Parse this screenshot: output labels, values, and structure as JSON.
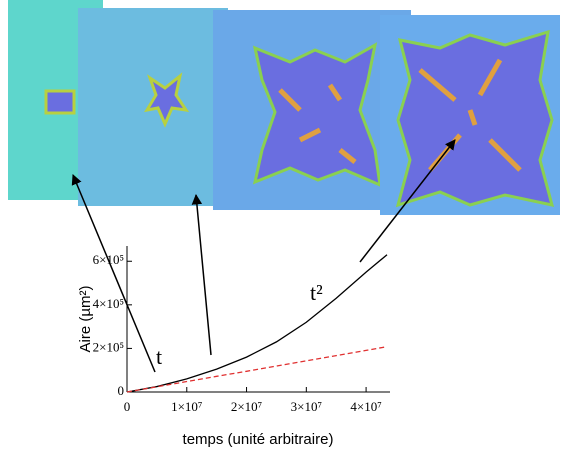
{
  "chart_data": {
    "type": "line",
    "x_label": "temps (unité arbitraire)",
    "y_label": "Aire (µm²)",
    "xlim": [
      0,
      44000000
    ],
    "ylim": [
      0,
      670000
    ],
    "xticks": [
      0,
      {
        "value": 10000000,
        "label": "1×10⁷"
      },
      {
        "value": 20000000,
        "label": "2×10⁷"
      },
      {
        "value": 30000000,
        "label": "3×10⁷"
      },
      {
        "value": 40000000,
        "label": "4×10⁷"
      }
    ],
    "yticks": [
      0,
      {
        "value": 200000,
        "label": "2×10⁵"
      },
      {
        "value": 400000,
        "label": "4×10⁵"
      },
      {
        "value": 600000,
        "label": "6×10⁵"
      }
    ],
    "x": [
      0,
      5000000,
      10000000,
      15000000,
      20000000,
      25000000,
      30000000,
      35000000,
      40000000,
      43500000
    ],
    "series": [
      {
        "color": "#000000",
        "dashed": false,
        "values": [
          0,
          25000,
          60000,
          105000,
          160000,
          230000,
          320000,
          430000,
          550000,
          630000
        ]
      },
      {
        "color": "#e03030",
        "dashed": true,
        "values": [
          0,
          24000,
          48000,
          72000,
          95000,
          119000,
          143000,
          167000,
          191000,
          208000
        ]
      }
    ],
    "annotations": [
      {
        "text": "t"
      },
      {
        "text": "t²"
      }
    ]
  }
}
